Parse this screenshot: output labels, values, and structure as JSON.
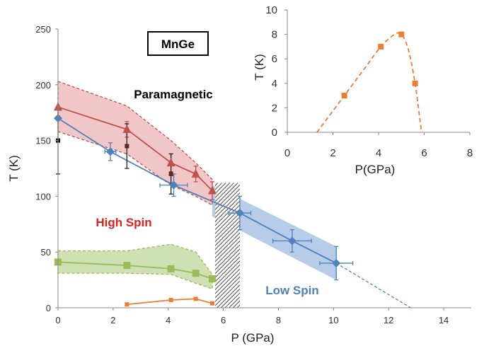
{
  "colors": {
    "paramagnetic": "#c0504d",
    "paramagnetic_band": "#e8a7a7",
    "high_spin_text": "#e0221f",
    "low_spin": "#4f81bd",
    "low_spin_band": "#8fb0db",
    "spin_order": "#9bbb59",
    "spin_order_band": "#b5d08a",
    "superconductivity": "#ed7d31",
    "errorbar": "#222222"
  },
  "chart_data": [
    {
      "type": "line",
      "title": "",
      "sample_label": "MnGe",
      "xlabel": "P (GPa)",
      "ylabel": "T (K)",
      "xlim": [
        0,
        15
      ],
      "ylim": [
        0,
        250
      ],
      "x_ticks": [
        "0",
        "2",
        "4",
        "6",
        "8",
        "10",
        "12",
        "14"
      ],
      "y_ticks": [
        "0",
        "50",
        "100",
        "150",
        "200",
        "250"
      ],
      "grid": false,
      "region_labels": {
        "paramagnetic": "Paramagnetic",
        "high_spin": "High Spin",
        "low_spin": "Low Spin"
      },
      "series": [
        {
          "marker": "triangle",
          "color_key": "paramagnetic",
          "x": [
            0,
            2.5,
            4.1,
            5.0,
            5.6
          ],
          "y": [
            180,
            160,
            130,
            120,
            105
          ],
          "band_upper": [
            203,
            181,
            150,
            130,
            115
          ],
          "band_lower": [
            158,
            138,
            110,
            100,
            92
          ],
          "yerr": [
            0,
            7,
            8,
            7,
            8
          ]
        },
        {
          "marker": "diamond",
          "color_key": "low_spin",
          "x": [
            0,
            1.9,
            4.2,
            6.6,
            8.5,
            10.1
          ],
          "y": [
            170,
            140,
            110,
            85,
            60,
            40
          ],
          "xerr": [
            0,
            0.2,
            0.5,
            0.4,
            0.7,
            0.6
          ],
          "yerr": [
            0,
            8,
            10,
            15,
            10,
            15
          ],
          "band_x": [
            5.6,
            10.1
          ],
          "band_upper": [
            110,
            55
          ],
          "band_lower": [
            82,
            25
          ],
          "extrapolation": [
            [
              10.1,
              40
            ],
            [
              12.8,
              0
            ]
          ]
        },
        {
          "marker": "square",
          "color_key": "spin_order",
          "x": [
            0,
            2.5,
            4.1,
            5.0,
            5.6
          ],
          "y": [
            41,
            38,
            35,
            31,
            26
          ],
          "band_upper": [
            51,
            51,
            57,
            50,
            30
          ],
          "band_lower": [
            31,
            31,
            30,
            22,
            17
          ]
        },
        {
          "marker": "small-square",
          "color_key": "superconductivity",
          "x": [
            2.5,
            4.1,
            5.0,
            5.6
          ],
          "y": [
            3,
            7,
            8,
            4
          ]
        },
        {
          "marker": "black-square",
          "color_key": "errorbar",
          "x": [
            0,
            2.5,
            4.1
          ],
          "y": [
            150,
            145,
            120
          ],
          "yerr": [
            30,
            20,
            18
          ]
        }
      ],
      "hatched_region": {
        "x": [
          5.7,
          6.6
        ]
      }
    },
    {
      "type": "scatter",
      "title": "",
      "xlabel": "P(GPa)",
      "ylabel": "T (K)",
      "xlim": [
        0,
        8
      ],
      "ylim": [
        0,
        10
      ],
      "x_ticks": [
        "0",
        "2",
        "4",
        "6",
        "8"
      ],
      "y_ticks": [
        "0",
        "2",
        "4",
        "6",
        "8",
        "10"
      ],
      "grid": false,
      "series": [
        {
          "marker": "square",
          "color_key": "superconductivity",
          "x": [
            2.5,
            4.1,
            5.0,
            5.6
          ],
          "y": [
            3,
            7,
            8,
            4
          ],
          "fit_curve": [
            [
              1.3,
              0
            ],
            [
              2.5,
              3.0
            ],
            [
              3.5,
              5.5
            ],
            [
              4.1,
              7.0
            ],
            [
              4.7,
              8.0
            ],
            [
              5.0,
              8.0
            ],
            [
              5.3,
              6.8
            ],
            [
              5.6,
              4.0
            ],
            [
              5.85,
              0.5
            ],
            [
              5.9,
              0
            ]
          ]
        }
      ]
    }
  ]
}
